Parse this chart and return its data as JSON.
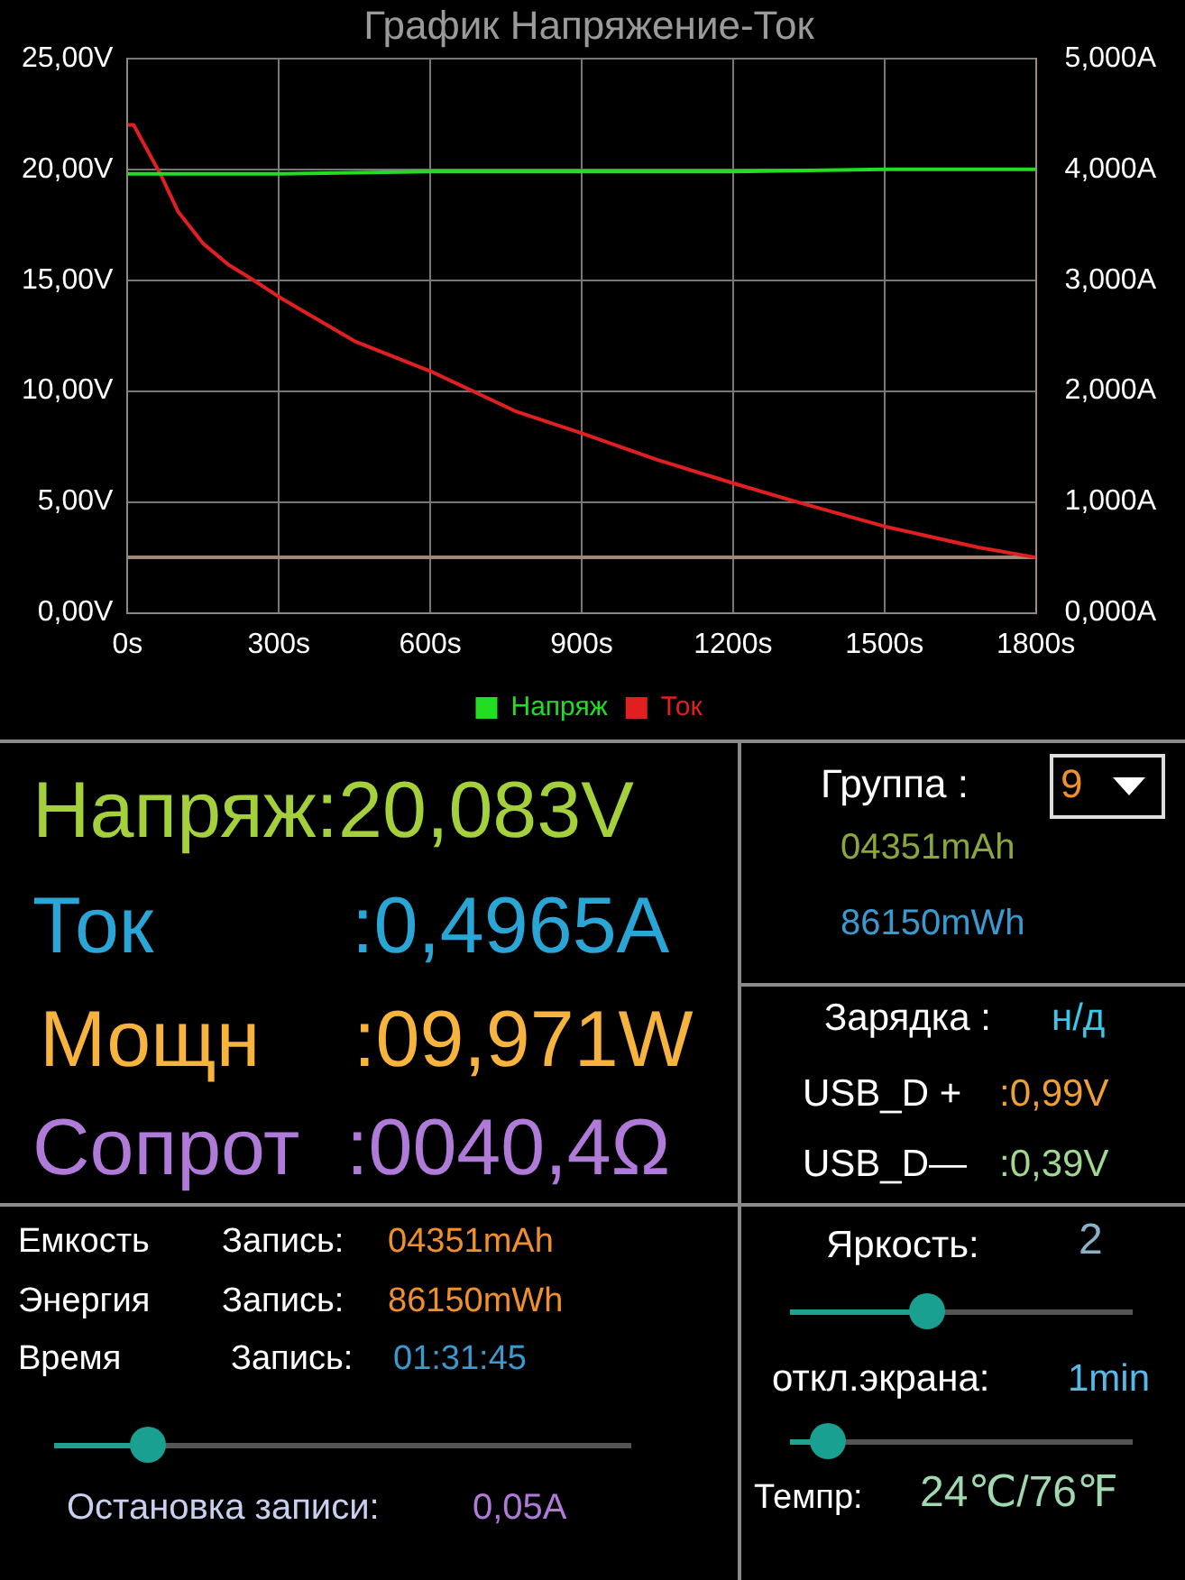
{
  "chart_data": [
    {
      "type": "line",
      "title": "График Напряжение-Ток",
      "x": [
        0,
        12,
        30,
        67,
        100,
        150,
        200,
        250,
        300,
        450,
        600,
        768,
        900,
        1050,
        1200,
        1327,
        1500,
        1686,
        1800
      ],
      "series": [
        {
          "name": "Напряж",
          "color": "#22dd22",
          "x": [
            0,
            300,
            600,
            900,
            1200,
            1500,
            1800
          ],
          "values": [
            19.8,
            19.8,
            19.9,
            19.9,
            19.9,
            20.0,
            20.0
          ]
        },
        {
          "name": "Ток",
          "color": "#e02020",
          "axis": "y2",
          "values": [
            4.4,
            4.4,
            4.25,
            3.94,
            3.62,
            3.33,
            3.14,
            3.0,
            2.85,
            2.45,
            2.18,
            1.82,
            1.62,
            1.38,
            1.17,
            1.0,
            0.78,
            0.59,
            0.5
          ]
        }
      ],
      "xlim": [
        0,
        1800
      ],
      "xticks": [
        {
          "value": 0,
          "label": "0s"
        },
        {
          "value": 300,
          "label": "300s"
        },
        {
          "value": 600,
          "label": "600s"
        },
        {
          "value": 900,
          "label": "900s"
        },
        {
          "value": 1200,
          "label": "1200s"
        },
        {
          "value": 1500,
          "label": "1500s"
        },
        {
          "value": 1800,
          "label": "1800s"
        }
      ],
      "ylim": [
        0,
        25
      ],
      "yticks": [
        {
          "value": 0,
          "label": "0,00V"
        },
        {
          "value": 5,
          "label": "5,00V"
        },
        {
          "value": 10,
          "label": "10,00V"
        },
        {
          "value": 15,
          "label": "15,00V"
        },
        {
          "value": 20,
          "label": "20,00V"
        },
        {
          "value": 25,
          "label": "25,00V"
        }
      ],
      "y2lim": [
        0,
        5
      ],
      "y2ticks": [
        {
          "value": 0,
          "label": "0,000A"
        },
        {
          "value": 1,
          "label": "1,000A"
        },
        {
          "value": 2,
          "label": "2,000A"
        },
        {
          "value": 3,
          "label": "3,000A"
        },
        {
          "value": 4,
          "label": "4,000A"
        },
        {
          "value": 5,
          "label": "5,000A"
        }
      ],
      "ref_lines": [
        {
          "axis": "y2",
          "value": 0.5,
          "color": "#a08878"
        }
      ],
      "grid": true,
      "legend": "bottom",
      "marker": "none",
      "line_style": "solid"
    },
    {
      "type": "other",
      "annotations": [
        "Напряж:20,083V",
        "Ток",
        ":0,4965A",
        "Мощн",
        ":09,971W",
        "Сопрот",
        ":0040,4Ω",
        "Группа :",
        "9",
        "04351mAh",
        "86150mWh",
        "Зарядка :",
        "н/д",
        "USB_D +",
        ":0,99V",
        "USB_D—",
        ":0,39V",
        "Емкость",
        "Запись:",
        "04351mAh",
        "Энергия",
        "Запись:",
        "86150mWh",
        "Время",
        "Запись:",
        "01:31:45",
        "Остановка записи:",
        "0,05A",
        "Яркость:",
        "2",
        "откл.экрана:",
        "1min",
        "Темпр:",
        "24℃/76℉"
      ]
    }
  ]
}
